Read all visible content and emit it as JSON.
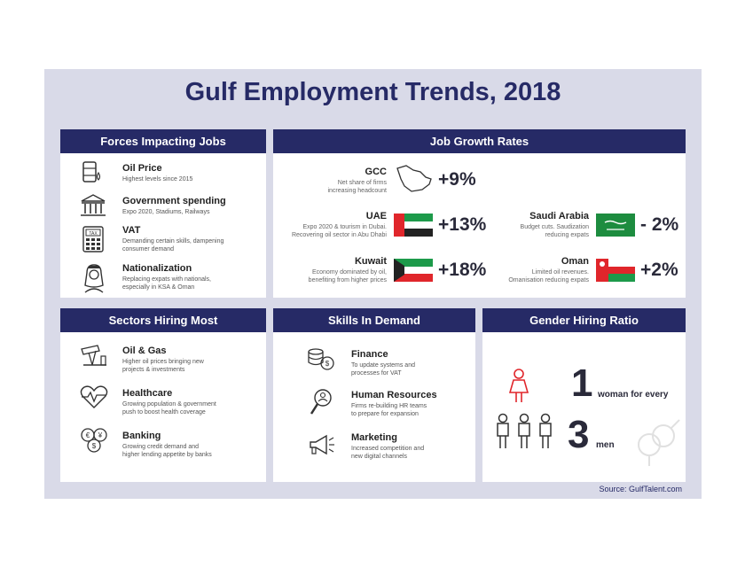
{
  "title": "Gulf Employment Trends, 2018",
  "source": "Source: GulfTalent.com",
  "forces": {
    "heading": "Forces Impacting Jobs",
    "items": [
      {
        "title": "Oil Price",
        "desc": "Highest levels since 2015",
        "icon": "oil-barrel-icon"
      },
      {
        "title": "Government spending",
        "desc": "Expo 2020, Stadiums, Railways",
        "icon": "government-building-icon"
      },
      {
        "title": "VAT",
        "desc": "Demanding certain skills, dampening consumer demand",
        "icon": "tax-calculator-icon"
      },
      {
        "title": "Nationalization",
        "desc": "Replacing expats with nationals, especially in KSA & Oman",
        "icon": "national-person-icon"
      }
    ]
  },
  "growth": {
    "heading": "Job Growth Rates",
    "items": [
      {
        "name": "GCC",
        "desc1": "Net share of firms",
        "desc2": "increasing headcount",
        "value": "+9%"
      },
      {
        "name": "UAE",
        "desc1": "Expo 2020 & tourism in Dubai.",
        "desc2": "Recovering oil sector in Abu Dhabi",
        "value": "+13%"
      },
      {
        "name": "Kuwait",
        "desc1": "Economy dominated by oil,",
        "desc2": "benefiting from higher prices",
        "value": "+18%"
      },
      {
        "name": "Saudi Arabia",
        "desc1": "Budget cuts. Saudization",
        "desc2": "reducing expats",
        "value": "- 2%"
      },
      {
        "name": "Oman",
        "desc1": "Limited oil revenues.",
        "desc2": "Omanisation reducing expats",
        "value": "+2%"
      }
    ],
    "colors": {
      "uae_red": "#e0262b",
      "uae_green": "#1d9a4a",
      "kuwait_green": "#1d9a4a",
      "kuwait_red": "#e0262b",
      "saudi_green": "#1d8c3f",
      "oman_red": "#e0262b",
      "oman_green": "#1d9a4a"
    }
  },
  "sectors": {
    "heading": "Sectors Hiring Most",
    "items": [
      {
        "title": "Oil & Gas",
        "desc1": "Higher oil prices bringing new",
        "desc2": "projects & investments",
        "icon": "oil-pump-icon"
      },
      {
        "title": "Healthcare",
        "desc1": "Growing population & government",
        "desc2": "push to boost health coverage",
        "icon": "heartbeat-icon"
      },
      {
        "title": "Banking",
        "desc1": "Growing credit demand and",
        "desc2": "higher lending appetite by banks",
        "icon": "currency-coins-icon"
      }
    ]
  },
  "skills": {
    "heading": "Skills In Demand",
    "items": [
      {
        "title": "Finance",
        "desc1": "To update systems and",
        "desc2": "processes for VAT",
        "icon": "coins-stack-icon"
      },
      {
        "title": "Human Resources",
        "desc1": "Firms re-building HR teams",
        "desc2": "to prepare for expansion",
        "icon": "magnifier-person-icon"
      },
      {
        "title": "Marketing",
        "desc1": "Increased competition and",
        "desc2": "new digital channels",
        "icon": "megaphone-icon"
      }
    ]
  },
  "gender": {
    "heading": "Gender Hiring Ratio",
    "women_count": "1",
    "women_label": "woman for every",
    "men_count": "3",
    "men_label": "men"
  },
  "colors": {
    "navy": "#262a66",
    "background": "#d9dae8",
    "accent_red": "#e0262b"
  }
}
